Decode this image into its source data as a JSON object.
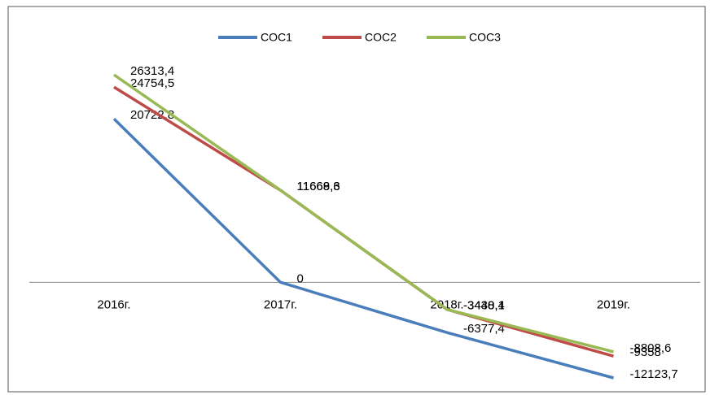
{
  "chart_data": {
    "type": "line",
    "categories": [
      "2016г.",
      "2017г.",
      "2018г.",
      "2019г."
    ],
    "series": [
      {
        "name": "COC1",
        "color": "#4a7ebb",
        "values": [
          20722.8,
          0,
          -6377.4,
          -12123.7
        ],
        "value_labels": [
          "20722,8",
          "0",
          "-6377,4",
          "-12123,7"
        ]
      },
      {
        "name": "COC2",
        "color": "#be4b48",
        "values": [
          24754.5,
          11668.3,
          -3440.1,
          -9358
        ],
        "value_labels": [
          "24754,5",
          "11668,3",
          "-3440,1",
          "-9358"
        ]
      },
      {
        "name": "COC3",
        "color": "#98b954",
        "values": [
          26313.4,
          11669.6,
          -3438.4,
          -8808.6
        ],
        "value_labels": [
          "26313,4",
          "11669,6",
          "-3438,4",
          "-8808,6"
        ]
      }
    ],
    "legend": "top"
  }
}
